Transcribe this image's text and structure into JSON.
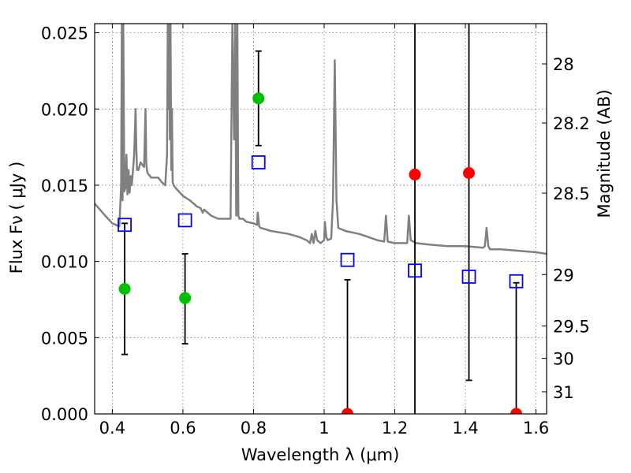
{
  "chart_data": {
    "type": "scatter",
    "title": "",
    "xlabel": "Wavelength  λ (μm)",
    "ylabel": "Flux  Fν  ( μJy )",
    "y2label": "Magnitude (AB)",
    "xlim": [
      0.35,
      1.63
    ],
    "ylim": [
      0.0,
      0.0256
    ],
    "grid": true,
    "x_ticks": [
      0.4,
      0.6,
      0.8,
      1.0,
      1.2,
      1.4,
      1.6
    ],
    "x_tick_labels": [
      "0.4",
      "0.6",
      "0.8",
      "1",
      "1.2",
      "1.4",
      "1.6"
    ],
    "y_ticks": [
      0.0,
      0.005,
      0.01,
      0.015,
      0.02,
      0.025
    ],
    "y_tick_labels": [
      "0.000",
      "0.005",
      "0.010",
      "0.015",
      "0.020",
      "0.025"
    ],
    "y2_ticks": [
      {
        "label": "28",
        "flux": 0.02296
      },
      {
        "label": "28.2",
        "flux": 0.01908
      },
      {
        "label": "28.5",
        "flux": 0.01448
      },
      {
        "label": "29",
        "flux": 0.00914
      },
      {
        "label": "29.5",
        "flux": 0.00577
      },
      {
        "label": "30",
        "flux": 0.00364
      },
      {
        "label": "31",
        "flux": 0.00145
      }
    ],
    "colors": {
      "model": "#808080",
      "detection": "#00c000",
      "upper_limit": "#ff0000",
      "model_band": "#0000ff",
      "errorbar": "#000000"
    },
    "series": [
      {
        "name": "model spectrum",
        "kind": "line",
        "x": [
          0.35,
          0.38,
          0.4,
          0.42,
          0.425,
          0.427,
          0.429,
          0.431,
          0.434,
          0.437,
          0.44,
          0.443,
          0.446,
          0.449,
          0.452,
          0.455,
          0.458,
          0.462,
          0.466,
          0.468,
          0.47,
          0.474,
          0.48,
          0.49,
          0.494,
          0.496,
          0.498,
          0.5,
          0.51,
          0.52,
          0.53,
          0.54,
          0.55,
          0.555,
          0.557,
          0.559,
          0.561,
          0.563,
          0.565,
          0.567,
          0.569,
          0.571,
          0.574,
          0.58,
          0.6,
          0.62,
          0.64,
          0.65,
          0.656,
          0.66,
          0.67,
          0.68,
          0.7,
          0.72,
          0.735,
          0.74,
          0.745,
          0.748,
          0.751,
          0.754,
          0.757,
          0.76,
          0.77,
          0.78,
          0.8,
          0.81,
          0.812,
          0.816,
          0.82,
          0.85,
          0.9,
          0.93,
          0.95,
          0.96,
          0.965,
          0.97,
          0.975,
          0.98,
          0.99,
          1.0,
          1.002,
          1.006,
          1.01,
          1.02,
          1.025,
          1.03,
          1.035,
          1.04,
          1.06,
          1.1,
          1.15,
          1.17,
          1.175,
          1.18,
          1.2,
          1.22,
          1.235,
          1.24,
          1.245,
          1.26,
          1.3,
          1.35,
          1.4,
          1.45,
          1.455,
          1.46,
          1.465,
          1.47,
          1.5,
          1.55,
          1.6,
          1.63
        ],
        "y": [
          0.0138,
          0.013,
          0.0125,
          0.0123,
          0.015,
          0.0256,
          0.014,
          0.0256,
          0.0146,
          0.0148,
          0.017,
          0.0144,
          0.016,
          0.0145,
          0.0156,
          0.015,
          0.0158,
          0.017,
          0.02,
          0.0175,
          0.016,
          0.016,
          0.0165,
          0.0162,
          0.02,
          0.0165,
          0.016,
          0.0158,
          0.0155,
          0.0155,
          0.0155,
          0.0152,
          0.015,
          0.017,
          0.0256,
          0.02,
          0.0256,
          0.018,
          0.0256,
          0.016,
          0.02,
          0.0152,
          0.015,
          0.0148,
          0.0143,
          0.014,
          0.0136,
          0.0135,
          0.0132,
          0.0134,
          0.0132,
          0.013,
          0.0128,
          0.0128,
          0.0128,
          0.0256,
          0.018,
          0.0256,
          0.013,
          0.0256,
          0.013,
          0.0128,
          0.0128,
          0.0126,
          0.0125,
          0.0124,
          0.0132,
          0.0123,
          0.0122,
          0.012,
          0.0118,
          0.0116,
          0.0114,
          0.0112,
          0.0118,
          0.0112,
          0.012,
          0.0114,
          0.0112,
          0.0114,
          0.0126,
          0.0116,
          0.0114,
          0.0115,
          0.014,
          0.0232,
          0.014,
          0.0122,
          0.012,
          0.0118,
          0.0114,
          0.0113,
          0.013,
          0.0113,
          0.0112,
          0.0112,
          0.0112,
          0.013,
          0.0114,
          0.0112,
          0.0111,
          0.011,
          0.011,
          0.0109,
          0.011,
          0.0122,
          0.011,
          0.0108,
          0.0108,
          0.0107,
          0.0106,
          0.0105
        ]
      },
      {
        "name": "detections",
        "kind": "points",
        "points": [
          {
            "x": 0.435,
            "y": 0.0082,
            "err_lo": 0.0039,
            "err_hi": 0.0125
          },
          {
            "x": 0.606,
            "y": 0.0076,
            "err_lo": 0.0046,
            "err_hi": 0.0105
          },
          {
            "x": 0.814,
            "y": 0.0207,
            "err_lo": 0.0176,
            "err_hi": 0.0238
          }
        ]
      },
      {
        "name": "non-detections",
        "kind": "points",
        "points": [
          {
            "x": 1.066,
            "y": 0.0,
            "err_lo": 0.0,
            "err_hi": 0.0088
          },
          {
            "x": 1.257,
            "y": 0.0157,
            "err_lo": 0.0,
            "err_hi": 0.0256
          },
          {
            "x": 1.41,
            "y": 0.0158,
            "err_lo": 0.0022,
            "err_hi": 0.0256
          },
          {
            "x": 1.544,
            "y": 0.0,
            "err_lo": 0.0,
            "err_hi": 0.0086
          }
        ]
      },
      {
        "name": "model band fluxes",
        "kind": "squares",
        "points": [
          {
            "x": 0.435,
            "y": 0.0124
          },
          {
            "x": 0.606,
            "y": 0.0127
          },
          {
            "x": 0.814,
            "y": 0.0165
          },
          {
            "x": 1.066,
            "y": 0.0101
          },
          {
            "x": 1.257,
            "y": 0.0094
          },
          {
            "x": 1.41,
            "y": 0.009
          },
          {
            "x": 1.544,
            "y": 0.0087
          }
        ]
      }
    ]
  }
}
